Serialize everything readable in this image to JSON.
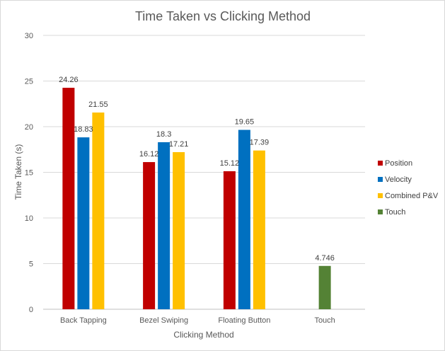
{
  "chart_data": {
    "type": "bar",
    "title": "Time Taken vs Clicking Method",
    "xlabel": "Clicking Method",
    "ylabel": "Time Taken (s)",
    "categories": [
      "Back Tapping",
      "Bezel Swiping",
      "Floating Button",
      "Touch"
    ],
    "ylim": [
      0,
      30
    ],
    "yticks": [
      "0",
      "5",
      "10",
      "15",
      "20",
      "25",
      "30"
    ],
    "grid": true,
    "legend_position": "right",
    "series": [
      {
        "name": "Position",
        "color": "#C00000",
        "values": [
          24.26,
          16.12,
          15.12,
          null
        ],
        "labels": [
          "24.26",
          "16.12",
          "15.12",
          ""
        ]
      },
      {
        "name": "Velocity",
        "color": "#0070C0",
        "values": [
          18.83,
          18.3,
          19.65,
          null
        ],
        "labels": [
          "18.83",
          "18.3",
          "19.65",
          ""
        ]
      },
      {
        "name": "Combined P&V",
        "color": "#FFC000",
        "values": [
          21.55,
          17.21,
          17.39,
          null
        ],
        "labels": [
          "21.55",
          "17.21",
          "17.39",
          ""
        ]
      },
      {
        "name": "Touch",
        "color": "#548235",
        "values": [
          null,
          null,
          null,
          4.746
        ],
        "labels": [
          "",
          "",
          "",
          "4.746"
        ]
      }
    ]
  }
}
